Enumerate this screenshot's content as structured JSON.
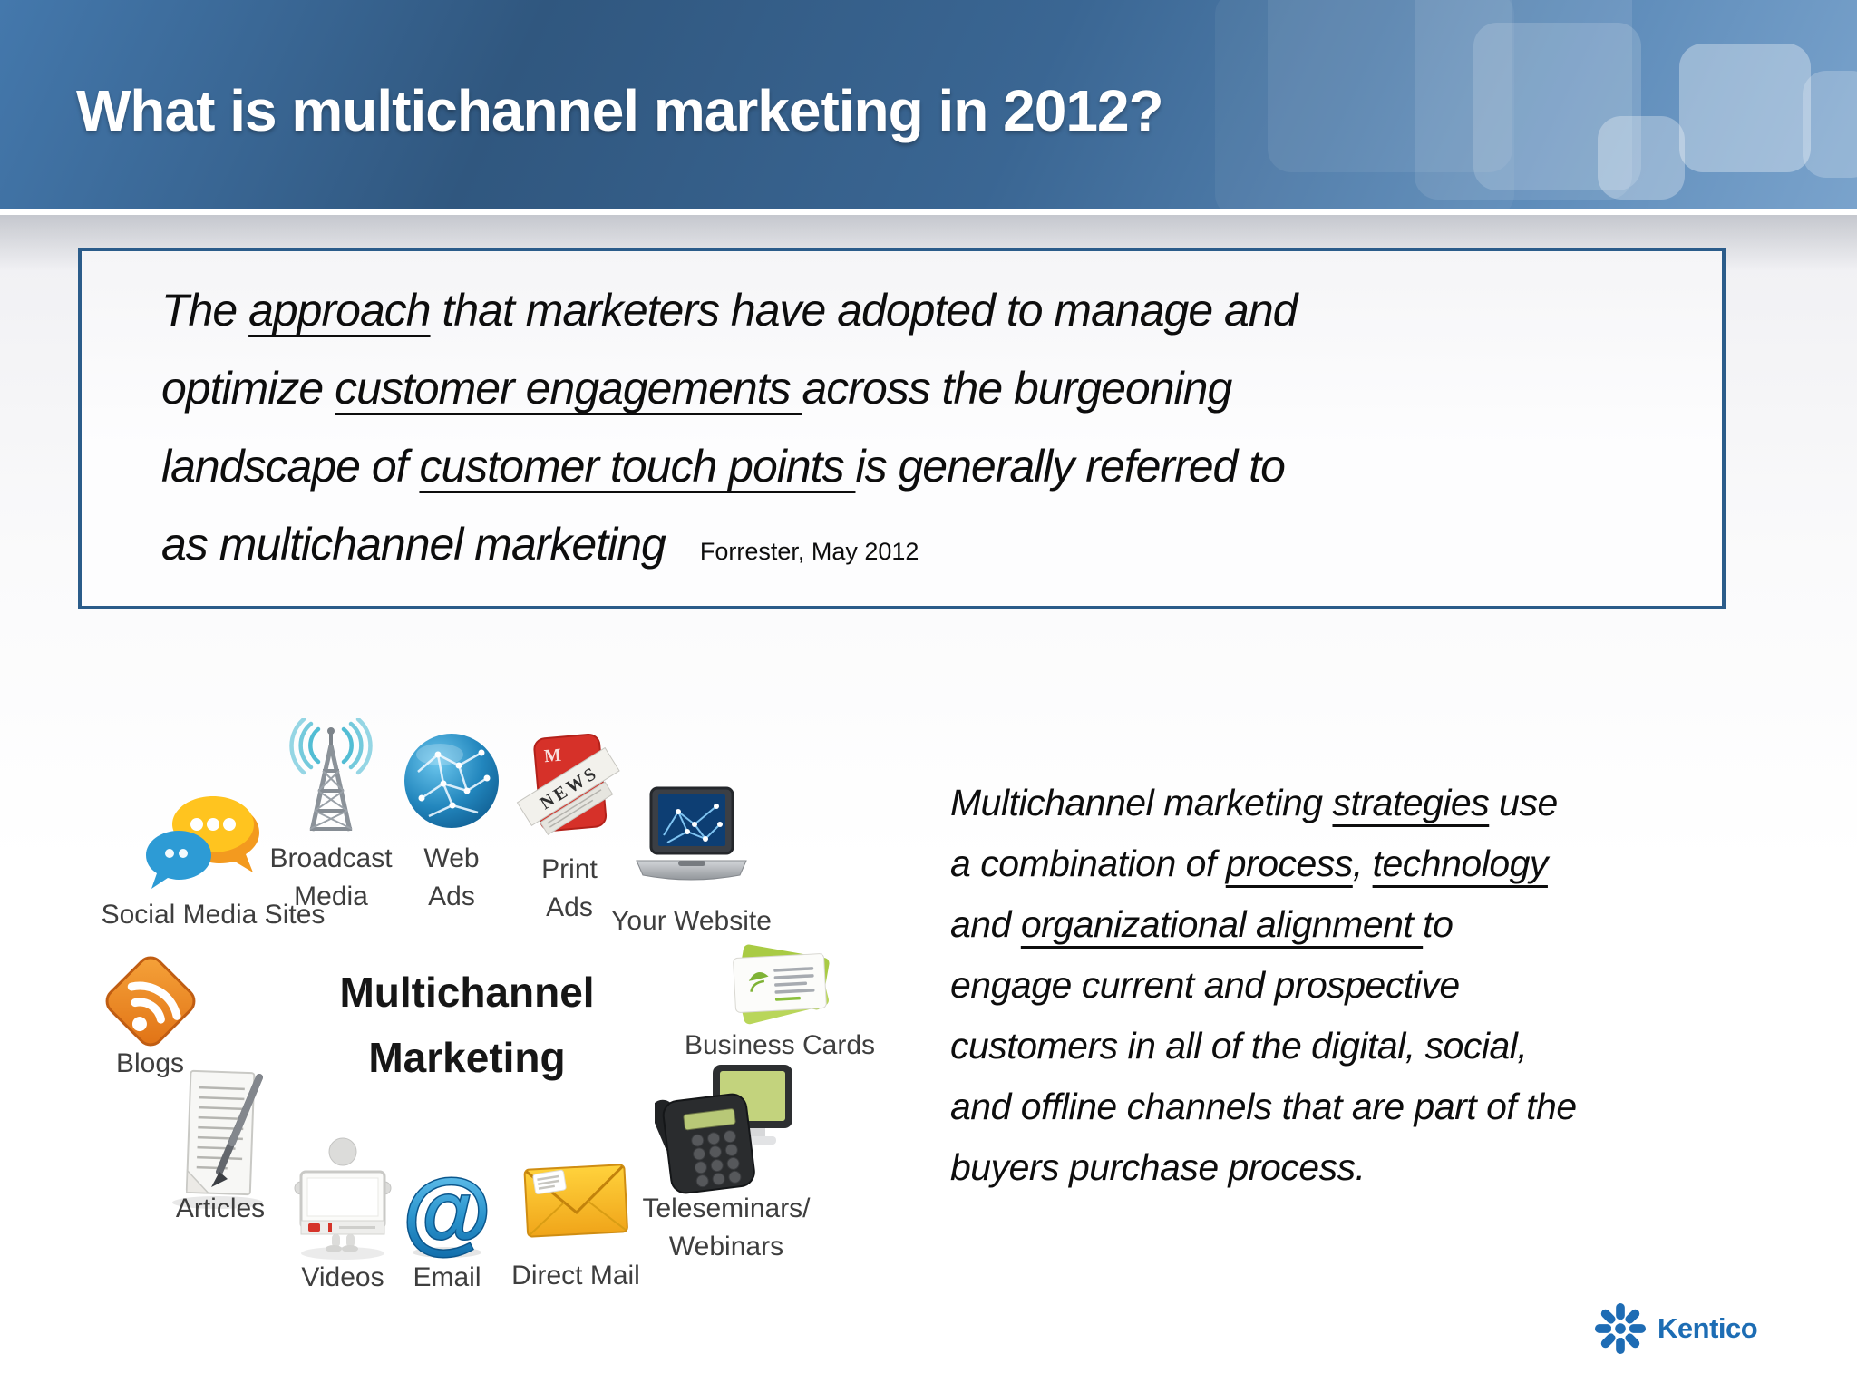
{
  "slide": {
    "header": {
      "title": "What is multichannel marketing in 2012?"
    },
    "quote": {
      "lines": [
        [
          {
            "t": "The "
          },
          {
            "t": "approach",
            "u": true
          },
          {
            "t": " that marketers have adopted to manage and"
          }
        ],
        [
          {
            "t": "optimize "
          },
          {
            "t": "customer engagements ",
            "u": true
          },
          {
            "t": "across the burgeoning"
          }
        ],
        [
          {
            "t": "landscape of "
          },
          {
            "t": "customer touch points ",
            "u": true
          },
          {
            "t": "is generally referred to"
          }
        ],
        [
          {
            "t": "as multichannel marketing"
          },
          {
            "t": "Forrester, May 2012",
            "cls": "cite"
          }
        ]
      ]
    },
    "paragraph": {
      "lines": [
        [
          {
            "t": "Multichannel marketing "
          },
          {
            "t": "strategies",
            "u": true
          },
          {
            "t": " use"
          }
        ],
        [
          {
            "t": "a combination of "
          },
          {
            "t": "process",
            "u": true
          },
          {
            "t": ", "
          },
          {
            "t": "technology",
            "u": true
          }
        ],
        [
          {
            "t": "and "
          },
          {
            "t": "organizational alignment ",
            "u": true
          },
          {
            "t": "to"
          }
        ],
        [
          {
            "t": "engage current and prospective"
          }
        ],
        [
          {
            "t": "customers in all of the digital, social,"
          }
        ],
        [
          {
            "t": "and offline channels that are part of the"
          }
        ],
        [
          {
            "t": "buyers purchase process."
          }
        ]
      ]
    },
    "diagram": {
      "center_label": "Multichannel\nMarketing",
      "items": [
        {
          "id": "social-media-sites",
          "label": "Social Media Sites"
        },
        {
          "id": "broadcast-media",
          "label": "Broadcast\nMedia"
        },
        {
          "id": "web-ads",
          "label": "Web\nAds"
        },
        {
          "id": "print-ads",
          "label": "Print\nAds"
        },
        {
          "id": "your-website",
          "label": "Your Website"
        },
        {
          "id": "business-cards",
          "label": "Business Cards"
        },
        {
          "id": "blogs",
          "label": "Blogs"
        },
        {
          "id": "articles",
          "label": "Articles"
        },
        {
          "id": "videos",
          "label": "Videos"
        },
        {
          "id": "email",
          "label": "Email"
        },
        {
          "id": "direct-mail",
          "label": "Direct Mail"
        },
        {
          "id": "teleseminars-webinars",
          "label": "Teleseminars/\nWebinars"
        }
      ],
      "print_ads_news_text": "NEWS",
      "email_at_glyph": "@"
    },
    "logo": {
      "text": "Kentico"
    },
    "colors": {
      "header_blue_dark": "#30577f",
      "header_blue_light": "#7aa3cc",
      "quote_border": "#2b5c8a",
      "kentico_blue": "#1d6db4",
      "label_gray": "#3e3e3e"
    }
  }
}
